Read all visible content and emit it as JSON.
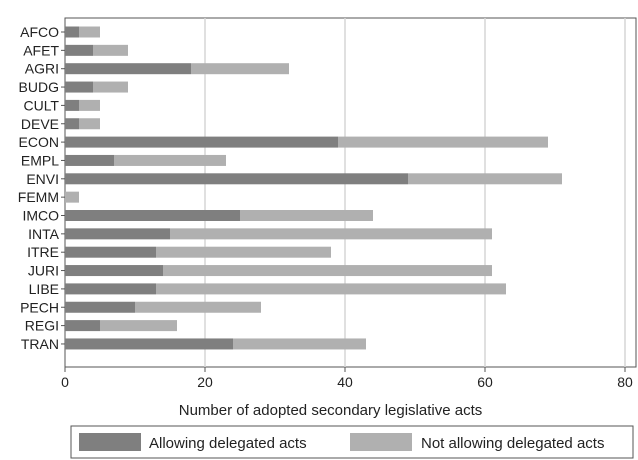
{
  "chart_data": {
    "type": "bar",
    "orientation": "horizontal",
    "stacked": true,
    "categories": [
      "AFCO",
      "AFET",
      "AGRI",
      "BUDG",
      "CULT",
      "DEVE",
      "ECON",
      "EMPL",
      "ENVI",
      "FEMM",
      "IMCO",
      "INTA",
      "ITRE",
      "JURI",
      "LIBE",
      "PECH",
      "REGI",
      "TRAN"
    ],
    "series": [
      {
        "name": "Allowing delegated acts",
        "color": "#7f7f7f",
        "values": [
          2,
          4,
          18,
          4,
          2,
          2,
          39,
          7,
          49,
          0,
          25,
          15,
          13,
          14,
          13,
          10,
          5,
          24
        ]
      },
      {
        "name": "Not allowing delegated acts",
        "color": "#b0b0b0",
        "values": [
          3,
          5,
          14,
          5,
          3,
          3,
          30,
          16,
          22,
          2,
          19,
          46,
          25,
          47,
          50,
          18,
          11,
          19
        ]
      }
    ],
    "xlabel": "Number of adopted secondary legislative acts",
    "ylabel": "",
    "xlim": [
      0,
      80
    ],
    "xticks": [
      0,
      20,
      40,
      60,
      80
    ],
    "grid": true,
    "legend_position": "bottom"
  }
}
